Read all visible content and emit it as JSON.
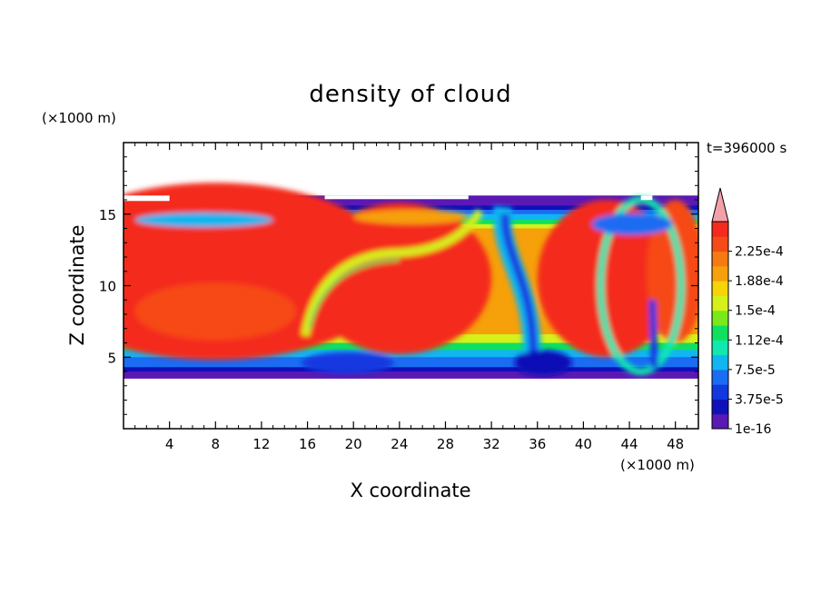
{
  "chart_data": {
    "type": "heatmap",
    "title": "density of cloud",
    "xlabel": "X coordinate",
    "ylabel": "Z coordinate",
    "x_unit": "(×1000 m)",
    "y_unit": "(×1000 m)",
    "time_label": "t=396000 s",
    "xlim": [
      0,
      50
    ],
    "ylim": [
      0,
      20
    ],
    "x_ticks": [
      4,
      8,
      12,
      16,
      20,
      24,
      28,
      32,
      36,
      40,
      44,
      48
    ],
    "y_ticks": [
      5,
      10,
      15
    ],
    "colorbar": {
      "labels": [
        "1e-16",
        "3.75e-5",
        "7.5e-5",
        "1.12e-4",
        "1.5e-4",
        "1.88e-4",
        "2.25e-4"
      ],
      "colors": [
        "#5a18b4",
        "#1010b8",
        "#1238e0",
        "#1a6cf2",
        "#11b6f0",
        "#10e8b0",
        "#10e060",
        "#7ae81a",
        "#d6f01a",
        "#f6d40a",
        "#f6a00a",
        "#f67a12",
        "#f64a18",
        "#f42a1c"
      ],
      "extend_color": "#f4a0a8",
      "extend": "max"
    },
    "cloud_layer": {
      "base_z": 3.5,
      "top_z": 16.3,
      "core_density": 0.00023
    },
    "features": [
      {
        "type": "updraft",
        "x_center": 16.5,
        "z_range": [
          6,
          12
        ],
        "density": 0.00013
      },
      {
        "type": "downdraft",
        "x_center": 35.5,
        "z_range": [
          4,
          13
        ],
        "density": 4e-05
      },
      {
        "type": "eddy",
        "x_center": 45,
        "z_center": 10,
        "density": 0.0001
      }
    ]
  }
}
